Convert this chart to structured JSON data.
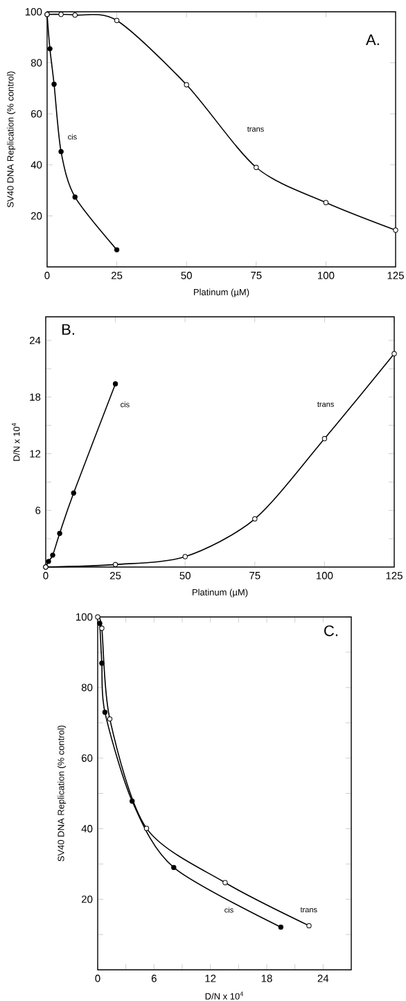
{
  "chart_data": [
    {
      "type": "line",
      "annotations": [
        "A."
      ],
      "xlabel": "Platinum (µM)",
      "ylabel": "SV40 DNA Replication (% control)",
      "xlim": [
        0,
        125
      ],
      "ylim": [
        0,
        100
      ],
      "xticks": [
        0,
        25,
        50,
        75,
        100,
        125
      ],
      "yticks": [
        20,
        40,
        60,
        80,
        100
      ],
      "marker": "circle",
      "line_style": "solid",
      "grid": false,
      "legend": false,
      "series": [
        {
          "name": "cis",
          "color": "#000000",
          "x": [
            0,
            1,
            2.5,
            5,
            10,
            25
          ],
          "values": [
            99,
            85.5,
            71.6,
            45.2,
            27.4,
            6.7
          ]
        },
        {
          "name": "trans",
          "color": "#000000",
          "x": [
            0,
            5,
            10,
            25,
            50,
            75,
            100,
            125
          ],
          "values": [
            99,
            99,
            98.7,
            96.6,
            71.4,
            39,
            25.2,
            14.4
          ]
        }
      ]
    },
    {
      "type": "line",
      "annotations": [
        "B."
      ],
      "xlabel": "Platinum (µM)",
      "ylabel": "D/N x 10$^{4}$",
      "xlim": [
        0,
        125
      ],
      "ylim": [
        0,
        26.5
      ],
      "xticks": [
        0,
        25,
        50,
        75,
        100,
        125
      ],
      "yticks": [
        {
          "value": 3,
          "label": null
        },
        6,
        {
          "value": 9,
          "label": null
        },
        12,
        {
          "value": 15,
          "label": null
        },
        18,
        {
          "value": 21,
          "label": null
        },
        24
      ],
      "marker": "circle",
      "line_style": "solid",
      "grid": false,
      "legend": false,
      "series": [
        {
          "name": "cis",
          "color": "#000000",
          "x": [
            0,
            1,
            2.5,
            5,
            10,
            25
          ],
          "values": [
            0,
            0.6,
            1.26,
            3.56,
            7.84,
            19.4
          ]
        },
        {
          "name": "trans",
          "color": "#000000",
          "x": [
            0,
            25,
            50,
            75,
            100,
            125
          ],
          "values": [
            0,
            0.27,
            1.1,
            5.1,
            13.6,
            22.6
          ]
        }
      ]
    },
    {
      "type": "line",
      "annotations": [
        "C."
      ],
      "xlabel": "D/N x 10$^{4}$",
      "ylabel": "SV40 DNA Replication (% control)",
      "xlim": [
        0,
        27
      ],
      "ylim": [
        0,
        100
      ],
      "xticks": [
        0,
        {
          "value": 3,
          "label": null
        },
        6,
        {
          "value": 9,
          "label": null
        },
        12,
        {
          "value": 15,
          "label": null
        },
        18,
        {
          "value": 21,
          "label": null
        },
        24
      ],
      "yticks": [
        {
          "value": 10,
          "label": null
        },
        20,
        {
          "value": 30,
          "label": null
        },
        40,
        {
          "value": 50,
          "label": null
        },
        60,
        {
          "value": 70,
          "label": null
        },
        80,
        {
          "value": 90,
          "label": null
        },
        100
      ],
      "marker": "circle",
      "line_style": "solid",
      "grid": false,
      "legend": false,
      "series": [
        {
          "name": "cis",
          "color": "#000000",
          "x": [
            0.22,
            0.44,
            0.77,
            3.67,
            8.1,
            19.5
          ],
          "values": [
            98.2,
            86.9,
            73.0,
            47.8,
            29.0,
            12.1
          ]
        },
        {
          "name": "trans",
          "color": "#000000",
          "x": [
            0,
            0.44,
            1.29,
            5.2,
            13.57,
            22.5
          ],
          "values": [
            100,
            96.8,
            71.1,
            40.1,
            24.7,
            12.5
          ]
        }
      ]
    }
  ]
}
